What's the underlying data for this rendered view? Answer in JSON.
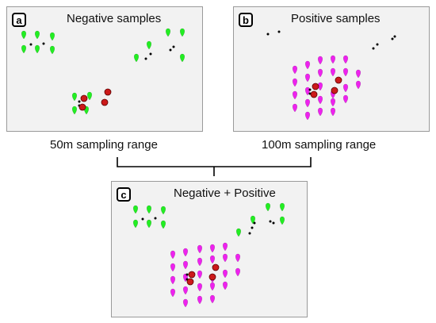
{
  "panels": [
    {
      "badge": "a",
      "title": "Negative samples"
    },
    {
      "badge": "b",
      "title": "Positive samples"
    },
    {
      "badge": "c",
      "title": "Negative + Positive"
    }
  ],
  "captions": {
    "left": "50m sampling range",
    "right": "100m sampling range"
  },
  "colors": {
    "negative_marker": "#22ee22",
    "positive_marker": "#ee22ee",
    "sample_dot": "#cc1a1a",
    "point": "#000000"
  }
}
